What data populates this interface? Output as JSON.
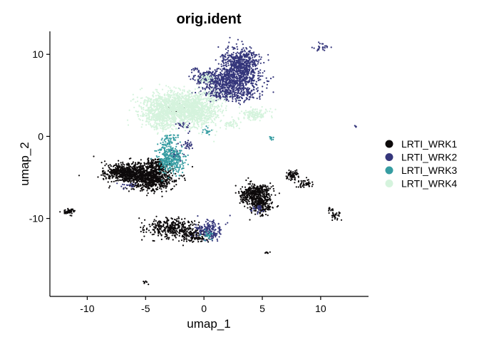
{
  "chart_data": {
    "type": "scatter",
    "title": "orig.ident",
    "xlabel": "umap_1",
    "ylabel": "umap_2",
    "xlim": [
      -13.2,
      14.1
    ],
    "ylim": [
      -19.5,
      12.8
    ],
    "xticks": [
      -10,
      -5,
      0,
      5,
      10
    ],
    "yticks": [
      -10,
      0,
      10
    ],
    "grid": false,
    "legend": "right",
    "point_size": 0.1,
    "series": [
      {
        "name": "LRTI_WRK1",
        "color": "#0d0a0b",
        "clusters": [
          {
            "cx": -5.6,
            "cy": -4.5,
            "sx": 1.3,
            "sy": 0.65,
            "n": 900
          },
          {
            "cx": -4.3,
            "cy": -5.5,
            "sx": 0.8,
            "sy": 0.6,
            "n": 400
          },
          {
            "cx": -7.3,
            "cy": -4.3,
            "sx": 0.5,
            "sy": 0.35,
            "n": 150
          },
          {
            "cx": -4.0,
            "cy": -3.4,
            "sx": 0.6,
            "sy": 0.4,
            "n": 120
          },
          {
            "cx": 4.5,
            "cy": -6.8,
            "sx": 0.6,
            "sy": 0.55,
            "n": 300
          },
          {
            "cx": 4.8,
            "cy": -8.3,
            "sx": 0.55,
            "sy": 0.6,
            "n": 260
          },
          {
            "cx": 3.6,
            "cy": -7.4,
            "sx": 0.25,
            "sy": 0.4,
            "n": 60
          },
          {
            "cx": 7.6,
            "cy": -4.7,
            "sx": 0.3,
            "sy": 0.3,
            "n": 70
          },
          {
            "cx": 8.5,
            "cy": -5.8,
            "sx": 0.45,
            "sy": 0.25,
            "n": 45
          },
          {
            "cx": -2.6,
            "cy": -11.2,
            "sx": 1.1,
            "sy": 0.6,
            "n": 350
          },
          {
            "cx": -1.0,
            "cy": -12.2,
            "sx": 0.6,
            "sy": 0.4,
            "n": 120
          },
          {
            "cx": -11.6,
            "cy": -9.2,
            "sx": 0.35,
            "sy": 0.2,
            "n": 50
          },
          {
            "cx": 11.3,
            "cy": -9.6,
            "sx": 0.25,
            "sy": 0.25,
            "n": 30
          },
          {
            "cx": 10.9,
            "cy": -8.9,
            "sx": 0.15,
            "sy": 0.15,
            "n": 12
          },
          {
            "cx": 5.4,
            "cy": -14.2,
            "sx": 0.12,
            "sy": 0.08,
            "n": 8
          },
          {
            "cx": -5.0,
            "cy": -17.8,
            "sx": 0.1,
            "sy": 0.1,
            "n": 8
          },
          {
            "cx": -2.7,
            "cy": 3.4,
            "sx": 0.6,
            "sy": 0.5,
            "n": 6
          }
        ]
      },
      {
        "name": "LRTI_WRK2",
        "color": "#35367b",
        "clusters": [
          {
            "cx": 3.1,
            "cy": 8.7,
            "sx": 0.85,
            "sy": 1.0,
            "n": 700
          },
          {
            "cx": 2.3,
            "cy": 6.8,
            "sx": 1.2,
            "sy": 0.6,
            "n": 400
          },
          {
            "cx": 0.5,
            "cy": 7.2,
            "sx": 0.7,
            "sy": 0.5,
            "n": 180
          },
          {
            "cx": 1.3,
            "cy": 5.4,
            "sx": 0.8,
            "sy": 0.45,
            "n": 180
          },
          {
            "cx": 3.2,
            "cy": 5.2,
            "sx": 0.8,
            "sy": 0.5,
            "n": 160
          },
          {
            "cx": -0.8,
            "cy": 8.1,
            "sx": 0.2,
            "sy": 0.15,
            "n": 12
          },
          {
            "cx": 0.6,
            "cy": -11.5,
            "sx": 0.5,
            "sy": 0.6,
            "n": 160
          },
          {
            "cx": -0.4,
            "cy": -11.2,
            "sx": 0.2,
            "sy": 0.3,
            "n": 20
          },
          {
            "cx": -1.8,
            "cy": 1.2,
            "sx": 0.3,
            "sy": 0.3,
            "n": 25
          },
          {
            "cx": -1.5,
            "cy": -1.0,
            "sx": 0.3,
            "sy": 0.3,
            "n": 30
          },
          {
            "cx": -2.4,
            "cy": -2.3,
            "sx": 0.3,
            "sy": 0.3,
            "n": 30
          },
          {
            "cx": 4.6,
            "cy": -8.9,
            "sx": 0.3,
            "sy": 0.3,
            "n": 25
          },
          {
            "cx": 10.2,
            "cy": 10.9,
            "sx": 0.3,
            "sy": 0.25,
            "n": 25
          },
          {
            "cx": -6.4,
            "cy": -5.9,
            "sx": 0.4,
            "sy": 0.2,
            "n": 18
          },
          {
            "cx": 13.0,
            "cy": 1.2,
            "sx": 0.05,
            "sy": 0.1,
            "n": 4
          }
        ]
      },
      {
        "name": "LRTI_WRK3",
        "color": "#369da2",
        "clusters": [
          {
            "cx": -2.7,
            "cy": -3.0,
            "sx": 0.55,
            "sy": 0.8,
            "n": 260
          },
          {
            "cx": -3.2,
            "cy": -1.6,
            "sx": 0.35,
            "sy": 0.5,
            "n": 80
          },
          {
            "cx": -2.9,
            "cy": -0.3,
            "sx": 0.35,
            "sy": 0.3,
            "n": 40
          },
          {
            "cx": 5.8,
            "cy": -0.2,
            "sx": 0.1,
            "sy": 0.1,
            "n": 10
          },
          {
            "cx": 0.3,
            "cy": -12.0,
            "sx": 0.2,
            "sy": 0.3,
            "n": 20
          },
          {
            "cx": 0.3,
            "cy": 0.6,
            "sx": 0.2,
            "sy": 0.2,
            "n": 15
          }
        ]
      },
      {
        "name": "LRTI_WRK4",
        "color": "#d5f3dd",
        "clusters": [
          {
            "cx": -1.8,
            "cy": 3.6,
            "sx": 1.5,
            "sy": 1.0,
            "n": 1300
          },
          {
            "cx": -3.7,
            "cy": 3.0,
            "sx": 0.9,
            "sy": 0.9,
            "n": 450
          },
          {
            "cx": -0.4,
            "cy": 2.8,
            "sx": 0.8,
            "sy": 0.9,
            "n": 300
          },
          {
            "cx": 4.3,
            "cy": 2.7,
            "sx": 0.6,
            "sy": 0.35,
            "n": 140
          },
          {
            "cx": 0.2,
            "cy": 7.0,
            "sx": 0.4,
            "sy": 0.3,
            "n": 40
          },
          {
            "cx": -3.5,
            "cy": 1.2,
            "sx": 0.5,
            "sy": 0.4,
            "n": 60
          },
          {
            "cx": 2.3,
            "cy": 1.6,
            "sx": 0.4,
            "sy": 0.3,
            "n": 40
          }
        ]
      }
    ]
  }
}
